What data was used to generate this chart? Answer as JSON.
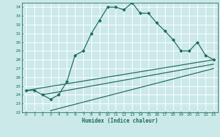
{
  "xlabel": "Humidex (Indice chaleur)",
  "xlim": [
    -0.5,
    23.5
  ],
  "ylim": [
    22,
    34.5
  ],
  "xticks": [
    0,
    1,
    2,
    3,
    4,
    5,
    6,
    7,
    8,
    9,
    10,
    11,
    12,
    13,
    14,
    15,
    16,
    17,
    18,
    19,
    20,
    21,
    22,
    23
  ],
  "yticks": [
    22,
    23,
    24,
    25,
    26,
    27,
    28,
    29,
    30,
    31,
    32,
    33,
    34
  ],
  "bg_color": "#cce9e9",
  "grid_color": "#ffffff",
  "line_color": "#1a6b5a",
  "line1_x": [
    0,
    1,
    2,
    3,
    4,
    5,
    6,
    7,
    8,
    9,
    10,
    11,
    12,
    13,
    14,
    15,
    16,
    17,
    18,
    19,
    20,
    21,
    22,
    23
  ],
  "line1_y": [
    24.5,
    24.5,
    24.0,
    23.5,
    24.0,
    25.5,
    28.5,
    29.0,
    31.0,
    32.5,
    34.0,
    34.0,
    33.7,
    34.5,
    33.3,
    33.3,
    32.2,
    31.3,
    30.3,
    29.0,
    29.0,
    30.0,
    28.5,
    28.0
  ],
  "line2_x": [
    0,
    23
  ],
  "line2_y": [
    24.5,
    28.0
  ],
  "line3_x": [
    2,
    23
  ],
  "line3_y": [
    24.0,
    27.5
  ],
  "line4_x": [
    3,
    23
  ],
  "line4_y": [
    22.2,
    27.0
  ],
  "marker": "D",
  "markersize": 2.2,
  "linewidth": 0.9
}
